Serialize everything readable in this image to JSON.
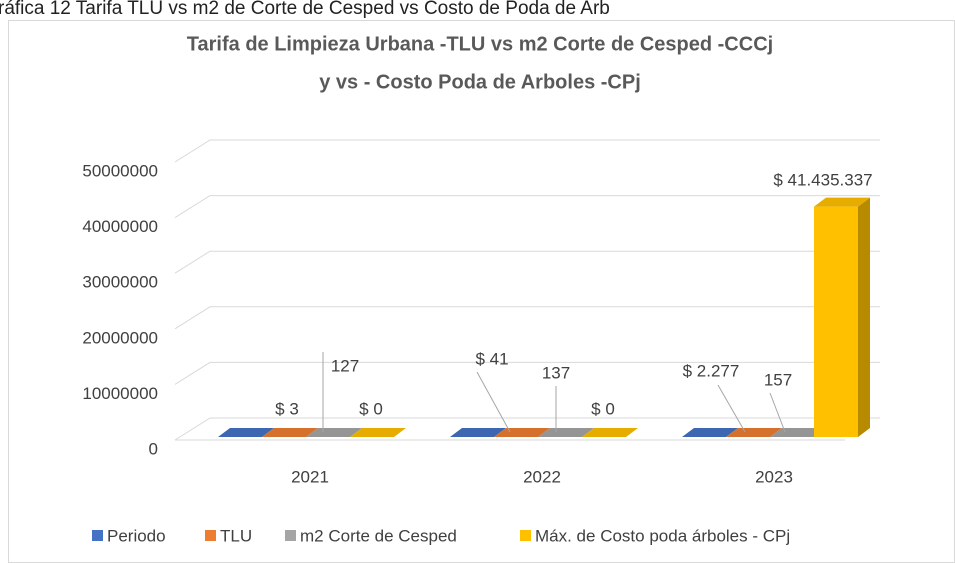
{
  "caption": "ráfica 12 Tarifa TLU vs m2 de Corte de Cesped vs Costo de Poda de Arb",
  "chart_data": {
    "type": "bar3d",
    "title": [
      "Tarifa de Limpieza Urbana -TLU vs m2 Corte de Cesped -CCCj",
      "y vs - Costo Poda de Arboles -CPj"
    ],
    "categories": [
      "2021",
      "2022",
      "2023"
    ],
    "series": [
      {
        "name": "Periodo",
        "color": "#4472c4",
        "values": [
          0,
          0,
          0
        ]
      },
      {
        "name": "TLU",
        "color": "#ed7d31",
        "values": [
          3,
          41,
          2277
        ],
        "value_labels": [
          "$ 3",
          "$ 41",
          "$ 2.277"
        ]
      },
      {
        "name": "m2 Corte de Cesped",
        "color": "#a5a5a5",
        "values": [
          127,
          137,
          157
        ],
        "value_labels": [
          "127",
          "137",
          "157"
        ]
      },
      {
        "name": "Máx. de Costo  poda  árboles - CPj",
        "color": "#ffc000",
        "values": [
          0,
          0,
          41435337
        ],
        "value_labels": [
          "$ 0",
          "$ 0",
          "$ 41.435.337"
        ]
      }
    ],
    "ylim": [
      0,
      50000000
    ],
    "yticks": [
      0,
      10000000,
      20000000,
      30000000,
      40000000,
      50000000
    ],
    "grid": true,
    "legend": "bottom"
  }
}
